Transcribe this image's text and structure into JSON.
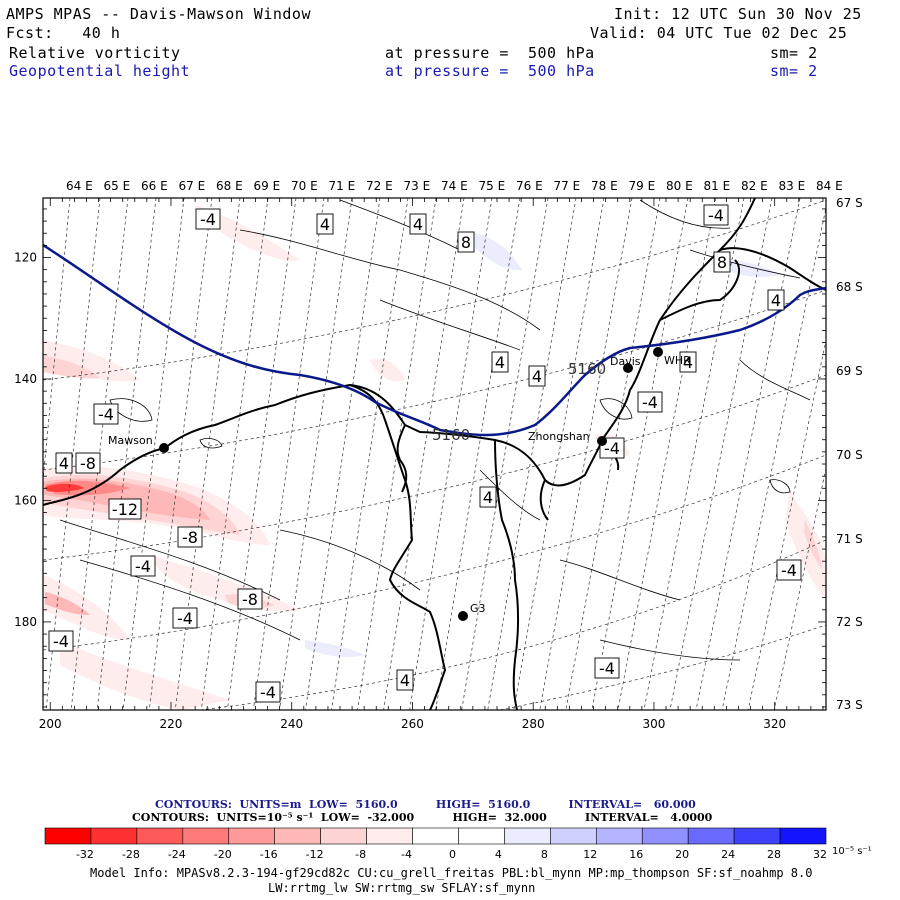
{
  "header": {
    "title": "AMPS MPAS -- Davis-Mawson Window",
    "init": "Init: 12 UTC Sun 30 Nov 25",
    "fcst": "Fcst:   40 h",
    "valid": "Valid: 04 UTC Tue 02 Dec 25",
    "field1": {
      "name": "Relative vorticity",
      "level": "at pressure =  500 hPa",
      "sm": "sm= 2"
    },
    "field2": {
      "name": "Geopotential height",
      "level": "at pressure =  500 hPa",
      "sm": "sm= 2"
    }
  },
  "map": {
    "top_lon_labels": [
      "64 E",
      "65 E",
      "66 E",
      "67 E",
      "68 E",
      "69 E",
      "70 E",
      "71 E",
      "72 E",
      "73 E",
      "74 E",
      "75 E",
      "76 E",
      "77 E",
      "78 E",
      "79 E",
      "80 E",
      "81 E",
      "82 E",
      "83 E",
      "84 E"
    ],
    "right_lat_labels": [
      "67 S",
      "68 S",
      "69 S",
      "70 S",
      "71 S",
      "72 S",
      "73 S"
    ],
    "x_ticks": [
      "200",
      "220",
      "240",
      "260",
      "280",
      "300",
      "320"
    ],
    "y_ticks": [
      "120",
      "140",
      "160",
      "180"
    ],
    "stations": [
      "Mawson",
      "Davis",
      "WHR",
      "Zhongshan",
      "G3"
    ],
    "height_labels": [
      "5160",
      "5160"
    ],
    "vort_labels": [
      "-4",
      "4",
      "4",
      "8",
      "-4",
      "8",
      "4",
      "4",
      "4",
      "-4",
      "4",
      "-4",
      "-8",
      "-12",
      "-8",
      "-4",
      "-8",
      "-4",
      "4",
      "-4",
      "-4",
      "4",
      "-4",
      "-4",
      "4",
      "-4"
    ],
    "colors": {
      "height_contour": "#0a1a8a",
      "coast": "#000000",
      "neg": "#ff0000",
      "pos": "#0000ff"
    }
  },
  "footer": {
    "contour1": "CONTOURS:  UNITS=m  LOW=  5160.0          HIGH=  5160.0          INTERVAL=   60.000",
    "contour2": "CONTOURS:  UNITS=10⁻⁵ s⁻¹  LOW=  -32.000          HIGH=  32.000          INTERVAL=   4.0000",
    "colorbar_labels": [
      "-32",
      "-28",
      "-24",
      "-20",
      "-16",
      "-12",
      "-8",
      "-4",
      "0",
      "4",
      "8",
      "12",
      "16",
      "20",
      "24",
      "28",
      "32"
    ],
    "colorbar_unit": "10⁻⁵ s⁻¹",
    "colorbar_colors": [
      "#ff0000",
      "#ff3030",
      "#ff5a5a",
      "#ff7a7a",
      "#ff9a9a",
      "#ffb8b8",
      "#ffd4d4",
      "#ffecec",
      "#ffffff",
      "#ffffff",
      "#ececff",
      "#d0d0ff",
      "#b4b4ff",
      "#9090ff",
      "#6a6aff",
      "#4040ff",
      "#1414ff"
    ],
    "model_info": "Model Info: MPASv8.2.3-194-gf29cd82c CU:cu_grell_freitas PBL:bl_mynn MP:mp_thompson SF:sf_noahmp 8.0",
    "model_info2": "LW:rrtmg_lw SW:rrtmg_sw SFLAY:sf_mynn"
  }
}
